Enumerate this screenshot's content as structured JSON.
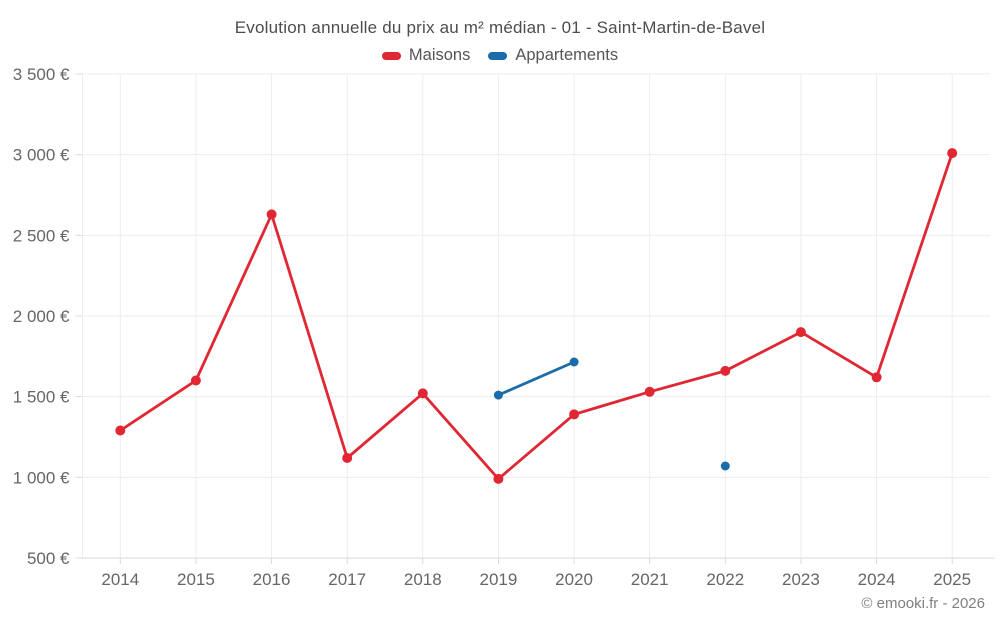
{
  "page": {
    "copyright": "© emooki.fr - 2026"
  },
  "chart_data": {
    "type": "line",
    "title": "Evolution annuelle du prix au m² médian - 01 - Saint-Martin-de-Bavel",
    "categories": [
      "2014",
      "2015",
      "2016",
      "2017",
      "2018",
      "2019",
      "2020",
      "2021",
      "2022",
      "2023",
      "2024",
      "2025"
    ],
    "series": [
      {
        "name": "Maisons",
        "color": "#e02733",
        "values": [
          1290,
          1600,
          2630,
          1120,
          1520,
          990,
          1390,
          1530,
          1660,
          1900,
          1620,
          3010
        ]
      },
      {
        "name": "Appartements",
        "color": "#1b6ca8",
        "values": [
          null,
          null,
          null,
          null,
          null,
          1510,
          1715,
          null,
          1070,
          null,
          null,
          null
        ]
      }
    ],
    "ylim": [
      500,
      3500
    ],
    "yticks": [
      {
        "value": 500,
        "label": "500 €"
      },
      {
        "value": 1000,
        "label": "1 000 €"
      },
      {
        "value": 1500,
        "label": "1 500 €"
      },
      {
        "value": 2000,
        "label": "2 000 €"
      },
      {
        "value": 2500,
        "label": "2 500 €"
      },
      {
        "value": 3000,
        "label": "3 000 €"
      },
      {
        "value": 3500,
        "label": "3 500 €"
      }
    ],
    "xlabel": "",
    "ylabel": "",
    "grid": true,
    "legend_position": "top"
  }
}
